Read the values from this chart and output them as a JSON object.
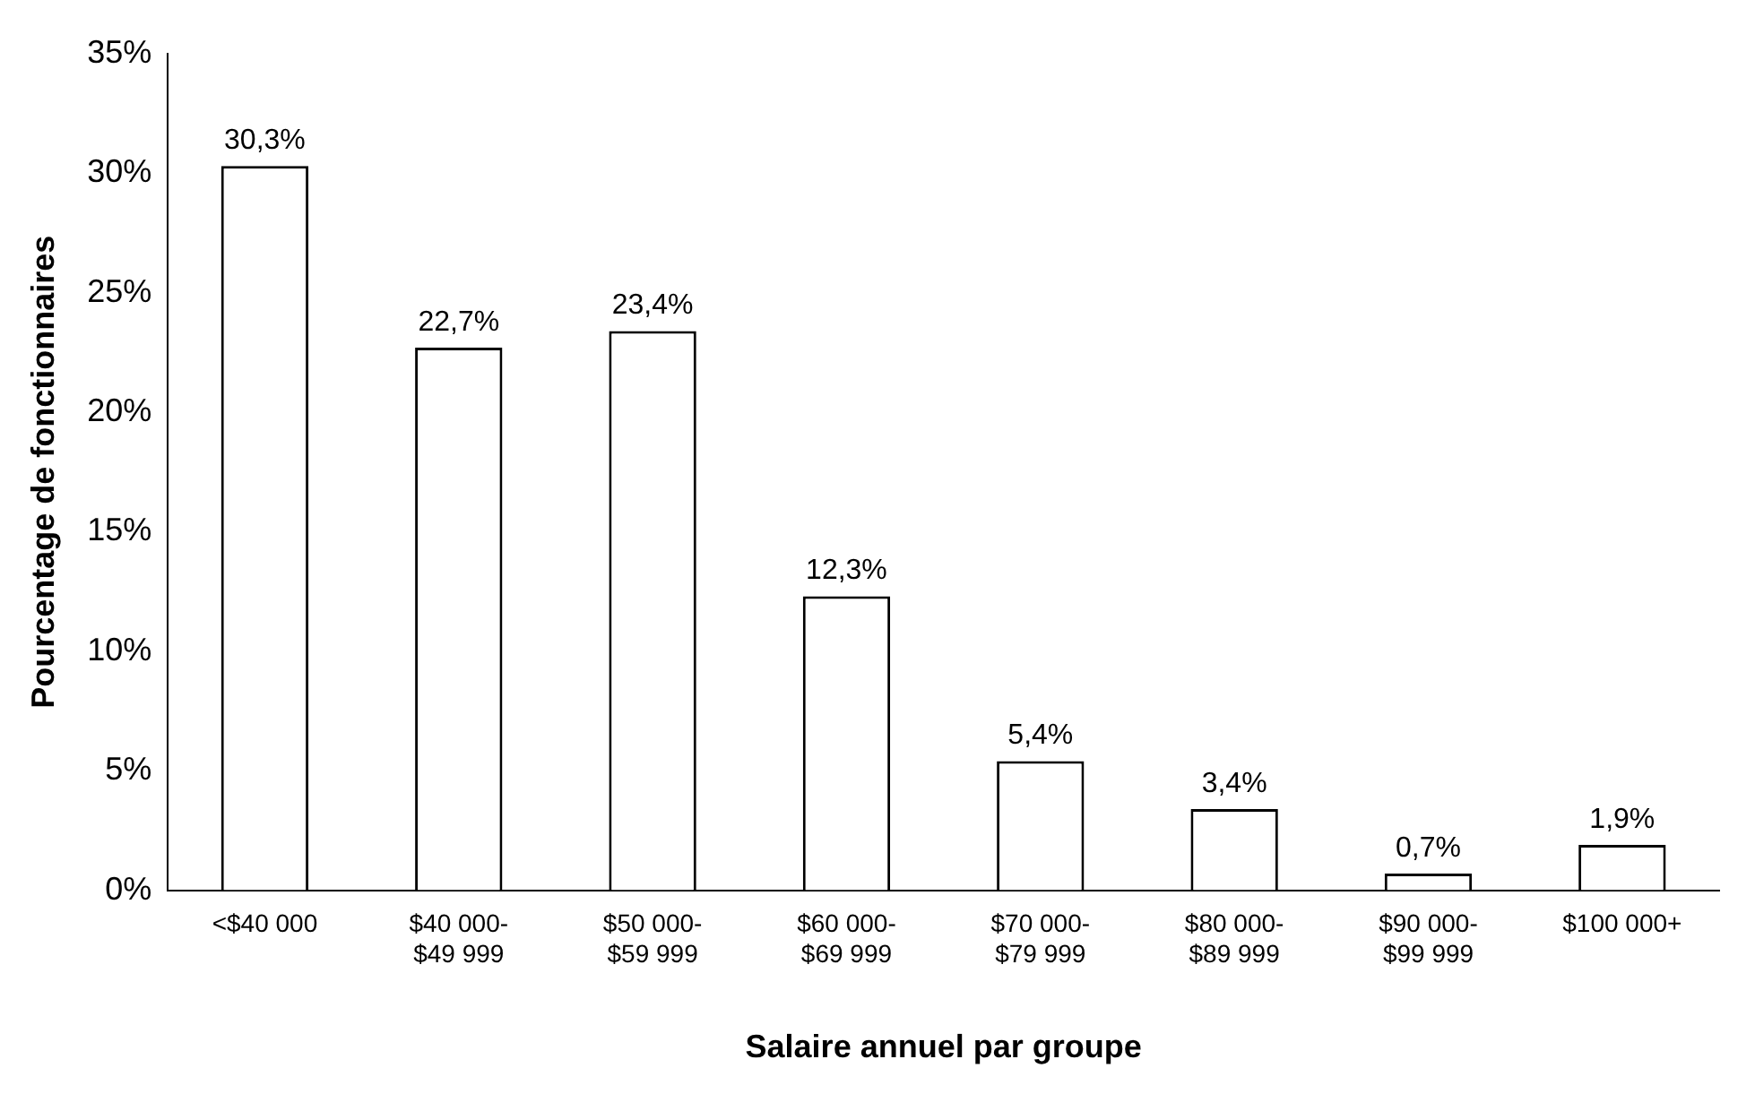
{
  "chart_data": {
    "type": "bar",
    "xlabel": "Salaire annuel par groupe",
    "ylabel": "Pourcentage de fonctionnaires",
    "categories": [
      "<$40 000",
      "$40 000-$49 999",
      "$50 000-$59 999",
      "$60 000-$69 999",
      "$70 000-$79 999",
      "$80 000-$89 999",
      "$90 000-$99 999",
      "$100 000+"
    ],
    "values": [
      30.3,
      22.7,
      23.4,
      12.3,
      5.4,
      3.4,
      0.7,
      1.9
    ],
    "value_labels": [
      "30,3%",
      "22,7%",
      "23,4%",
      "12,3%",
      "5,4%",
      "3,4%",
      "0,7%",
      "1,9%"
    ],
    "color": "#ffffff",
    "ylim": [
      0,
      35
    ],
    "yticks": [
      {
        "value": 0,
        "label": "0%"
      },
      {
        "value": 5,
        "label": "5%"
      },
      {
        "value": 10,
        "label": "10%"
      },
      {
        "value": 15,
        "label": "15%"
      },
      {
        "value": 20,
        "label": "20%"
      },
      {
        "value": 25,
        "label": "25%"
      },
      {
        "value": 30,
        "label": "30%"
      },
      {
        "value": 35,
        "label": "35%"
      }
    ],
    "grid": false,
    "legend": false
  }
}
